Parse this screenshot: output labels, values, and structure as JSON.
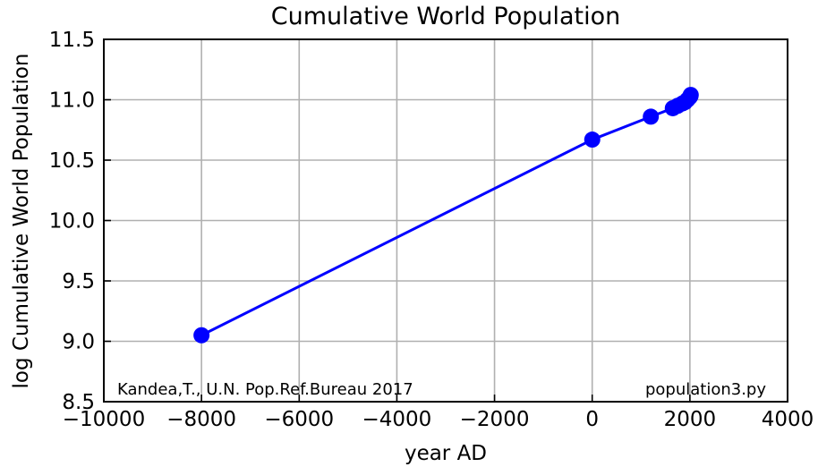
{
  "chart_data": {
    "type": "line",
    "title": "Cumulative World Population",
    "xlabel": "year AD",
    "ylabel": "log Cumulative World Population",
    "xlim": [
      -10000,
      4000
    ],
    "ylim": [
      8.5,
      11.5
    ],
    "xticks": [
      -10000,
      -8000,
      -6000,
      -4000,
      -2000,
      0,
      2000,
      4000
    ],
    "xtick_labels": [
      "−10000",
      "−8000",
      "−6000",
      "−4000",
      "−2000",
      "0",
      "2000",
      "4000"
    ],
    "yticks": [
      8.5,
      9.0,
      9.5,
      10.0,
      10.5,
      11.0,
      11.5
    ],
    "ytick_labels": [
      "8.5",
      "9.0",
      "9.5",
      "10.0",
      "10.5",
      "11.0",
      "11.5"
    ],
    "grid": true,
    "series": [
      {
        "color": "#0000ff",
        "x": [
          -8000,
          1,
          1200,
          1650,
          1750,
          1850,
          1900,
          1950,
          1995,
          2011,
          2017
        ],
        "y": [
          9.05,
          10.67,
          10.86,
          10.93,
          10.95,
          10.97,
          10.98,
          11.0,
          11.02,
          11.03,
          11.04
        ]
      }
    ],
    "annotations": {
      "source": "Kandea,T., U.N. Pop.Ref.Bureau 2017",
      "script": "population3.py"
    }
  }
}
